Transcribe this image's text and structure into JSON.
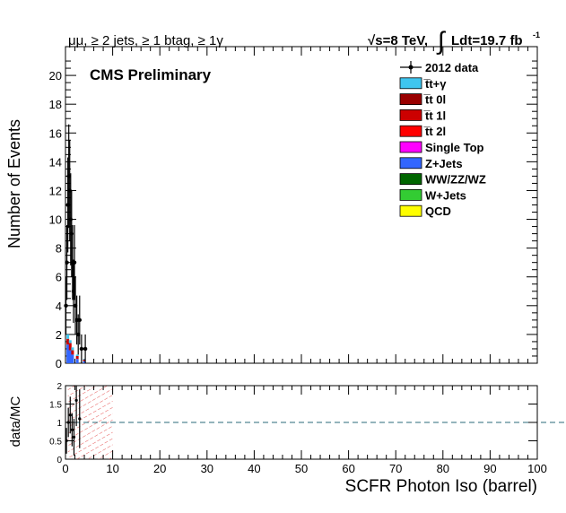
{
  "header": {
    "selection": "μμ, ≥ 2 jets, ≥ 1 btag, ≥ 1γ",
    "energy": "√s=8 TeV,",
    "lumi": "Ldt=19.7 fb",
    "lumi_sup": "-1"
  },
  "chart_data": [
    {
      "type": "bar",
      "title": "CMS Preliminary",
      "ylabel": "Number of Events",
      "xlim": [
        0,
        100
      ],
      "ylim": [
        0,
        22
      ],
      "yticks": [
        0,
        2,
        4,
        6,
        8,
        10,
        12,
        14,
        16,
        18,
        20
      ],
      "xticks": [
        0,
        10,
        20,
        30,
        40,
        50,
        60,
        70,
        80,
        90,
        100
      ],
      "grid": false,
      "legend_position": "top-right",
      "legend": [
        {
          "name": "2012 data",
          "color": "#000000",
          "marker": "point"
        },
        {
          "name": "t̅t+γ",
          "color": "#3fc6ef"
        },
        {
          "name": "t̅t 0l",
          "color": "#990000"
        },
        {
          "name": "t̅t 1l",
          "color": "#cc0000"
        },
        {
          "name": "t̅t 2l",
          "color": "#ff0000"
        },
        {
          "name": "Single Top",
          "color": "#ff00ff"
        },
        {
          "name": "Z+Jets",
          "color": "#3366ff"
        },
        {
          "name": "WW/ZZ/WZ",
          "color": "#006600"
        },
        {
          "name": "W+Jets",
          "color": "#33cc33"
        },
        {
          "name": "QCD",
          "color": "#ffff00"
        }
      ],
      "data_points": [
        {
          "x": 0.1,
          "y": 4,
          "err": 2.0
        },
        {
          "x": 0.3,
          "y": 7,
          "err": 2.6
        },
        {
          "x": 0.5,
          "y": 11,
          "err": 3.3
        },
        {
          "x": 0.7,
          "y": 13,
          "err": 3.6
        },
        {
          "x": 0.9,
          "y": 12,
          "err": 3.5
        },
        {
          "x": 1.1,
          "y": 10,
          "err": 3.2
        },
        {
          "x": 1.3,
          "y": 9,
          "err": 3.0
        },
        {
          "x": 1.5,
          "y": 7,
          "err": 2.6
        },
        {
          "x": 1.7,
          "y": 5,
          "err": 2.2
        },
        {
          "x": 1.9,
          "y": 7,
          "err": 2.6
        },
        {
          "x": 2.1,
          "y": 4,
          "err": 2.0
        },
        {
          "x": 2.4,
          "y": 3,
          "err": 1.7
        },
        {
          "x": 2.7,
          "y": 2,
          "err": 1.4
        },
        {
          "x": 3.0,
          "y": 3,
          "err": 1.7
        },
        {
          "x": 3.4,
          "y": 1,
          "err": 1.0
        },
        {
          "x": 4.2,
          "y": 1,
          "err": 1.0
        }
      ],
      "mc_stack": [
        {
          "x": 0.5,
          "values": {
            "ttgamma": 0.3,
            "tt1l": 0.4,
            "zjets": 1.3
          }
        },
        {
          "x": 1.0,
          "values": {
            "ttgamma": 0.2,
            "tt1l": 0.5,
            "zjets": 0.9
          }
        },
        {
          "x": 1.5,
          "values": {
            "ttgamma": 0.2,
            "tt1l": 0.3,
            "zjets": 0.6
          }
        },
        {
          "x": 2.5,
          "values": {
            "ttgamma": 0.1,
            "tt1l": 0.2,
            "zjets": 0.3
          }
        },
        {
          "x": 4.0,
          "values": {
            "ttgamma": 0.05,
            "tt1l": 0.1,
            "zjets": 0.15
          }
        }
      ]
    },
    {
      "type": "scatter",
      "ylabel": "data/MC",
      "xlabel": "SCFR Photon Iso (barrel)",
      "xlim": [
        0,
        100
      ],
      "ylim": [
        0,
        2
      ],
      "yticks": [
        0,
        0.5,
        1,
        1.5,
        2
      ],
      "xticks": [
        0,
        10,
        20,
        30,
        40,
        50,
        60,
        70,
        80,
        90,
        100
      ],
      "reference_line": 1,
      "uncertainty_band_x": [
        5,
        10
      ],
      "ratio_points": [
        {
          "x": 0.2,
          "y": 0.5,
          "err": 0.35
        },
        {
          "x": 0.6,
          "y": 1.0,
          "err": 0.4
        },
        {
          "x": 1.0,
          "y": 1.2,
          "err": 0.5
        },
        {
          "x": 1.4,
          "y": 0.8,
          "err": 0.45
        },
        {
          "x": 1.8,
          "y": 0.6,
          "err": 0.5
        },
        {
          "x": 2.3,
          "y": 1.6,
          "err": 0.7
        },
        {
          "x": 3.0,
          "y": 1.1,
          "err": 0.8
        }
      ]
    }
  ]
}
